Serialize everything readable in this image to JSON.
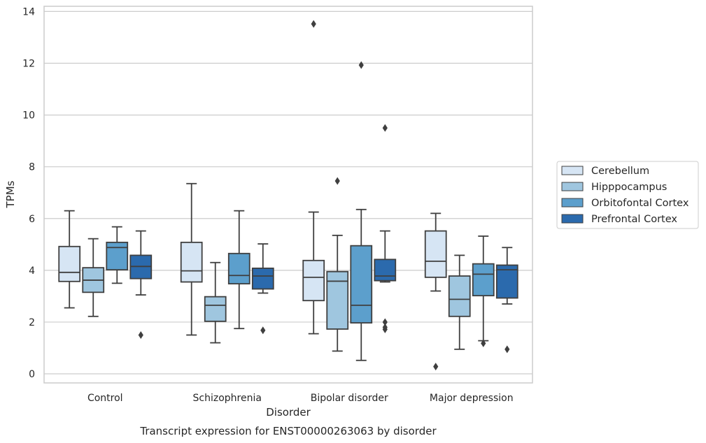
{
  "chart_data": {
    "type": "boxplot",
    "caption": "Transcript expression for ENST00000263063 by disorder",
    "xlabel": "Disorder",
    "ylabel": "TPMs",
    "ylim": [
      -0.35,
      14.2
    ],
    "yticks": [
      0,
      2,
      4,
      6,
      8,
      10,
      12,
      14
    ],
    "grid": true,
    "legend_position": "right",
    "categories": [
      "Control",
      "Schizophrenia",
      "Bipolar disorder",
      "Major depression"
    ],
    "series": [
      {
        "name": "Cerebellum",
        "color": "#d6e5f4",
        "boxes": [
          {
            "whislo": 2.55,
            "q1": 3.57,
            "med": 3.92,
            "q3": 4.92,
            "whishi": 6.3,
            "fliers": []
          },
          {
            "whislo": 1.5,
            "q1": 3.55,
            "med": 3.98,
            "q3": 5.08,
            "whishi": 7.35,
            "fliers": []
          },
          {
            "whislo": 1.55,
            "q1": 2.83,
            "med": 3.73,
            "q3": 4.38,
            "whishi": 6.25,
            "fliers": [
              13.52
            ]
          },
          {
            "whislo": 3.2,
            "q1": 3.73,
            "med": 4.35,
            "q3": 5.52,
            "whishi": 6.2,
            "fliers": [
              0.28
            ]
          }
        ]
      },
      {
        "name": "Hipppocampus",
        "color": "#9fc6df",
        "boxes": [
          {
            "whislo": 2.22,
            "q1": 3.15,
            "med": 3.62,
            "q3": 4.1,
            "whishi": 5.22,
            "fliers": []
          },
          {
            "whislo": 1.2,
            "q1": 2.03,
            "med": 2.65,
            "q3": 2.98,
            "whishi": 4.3,
            "fliers": []
          },
          {
            "whislo": 0.88,
            "q1": 1.73,
            "med": 3.58,
            "q3": 3.95,
            "whishi": 5.35,
            "fliers": [
              7.45
            ]
          },
          {
            "whislo": 0.95,
            "q1": 2.22,
            "med": 2.88,
            "q3": 3.78,
            "whishi": 4.58,
            "fliers": []
          }
        ]
      },
      {
        "name": "Orbitofontal Cortex",
        "color": "#5c9fcc",
        "boxes": [
          {
            "whislo": 3.5,
            "q1": 4.02,
            "med": 4.88,
            "q3": 5.08,
            "whishi": 5.68,
            "fliers": []
          },
          {
            "whislo": 1.75,
            "q1": 3.48,
            "med": 3.8,
            "q3": 4.65,
            "whishi": 6.3,
            "fliers": []
          },
          {
            "whislo": 0.52,
            "q1": 1.97,
            "med": 2.65,
            "q3": 4.95,
            "whishi": 6.35,
            "fliers": [
              11.93
            ]
          },
          {
            "whislo": 1.28,
            "q1": 3.02,
            "med": 3.85,
            "q3": 4.25,
            "whishi": 5.32,
            "fliers": [
              1.18
            ]
          }
        ]
      },
      {
        "name": "Prefrontal Cortex",
        "color": "#2b6aad",
        "boxes": [
          {
            "whislo": 3.05,
            "q1": 3.68,
            "med": 4.15,
            "q3": 4.58,
            "whishi": 5.52,
            "fliers": [
              1.5
            ]
          },
          {
            "whislo": 3.12,
            "q1": 3.28,
            "med": 3.78,
            "q3": 4.08,
            "whishi": 5.02,
            "fliers": [
              1.68
            ]
          },
          {
            "whislo": 3.55,
            "q1": 3.6,
            "med": 3.78,
            "q3": 4.42,
            "whishi": 5.52,
            "fliers": [
              9.5,
              2.0,
              1.8,
              1.72
            ]
          },
          {
            "whislo": 2.7,
            "q1": 2.93,
            "med": 4.02,
            "q3": 4.2,
            "whishi": 4.88,
            "fliers": [
              0.95
            ]
          }
        ]
      }
    ]
  }
}
